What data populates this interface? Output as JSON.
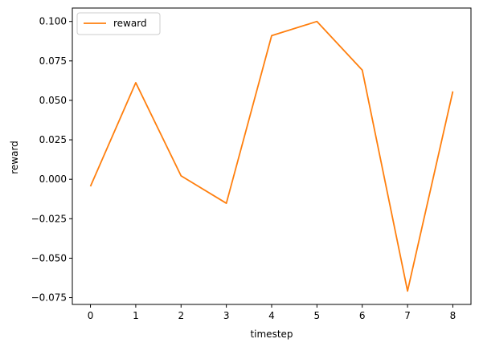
{
  "chart_data": {
    "type": "line",
    "x": [
      0,
      1,
      2,
      3,
      4,
      5,
      6,
      7,
      8
    ],
    "series": [
      {
        "name": "reward",
        "color": "#ff7f0e",
        "values": [
          -0.0045,
          0.0612,
          0.0022,
          -0.0152,
          0.091,
          0.1,
          0.0692,
          -0.0708,
          0.0557
        ]
      }
    ],
    "title": "",
    "xlabel": "timestep",
    "ylabel": "reward",
    "xlim": [
      -0.4,
      8.4
    ],
    "ylim": [
      -0.0793,
      0.1085
    ],
    "xticks": [
      0,
      1,
      2,
      3,
      4,
      5,
      6,
      7,
      8
    ],
    "xtick_labels": [
      "0",
      "1",
      "2",
      "3",
      "4",
      "5",
      "6",
      "7",
      "8"
    ],
    "yticks": [
      -0.075,
      -0.05,
      -0.025,
      0.0,
      0.025,
      0.05,
      0.075,
      0.1
    ],
    "ytick_labels": [
      "−0.075",
      "−0.050",
      "−0.025",
      "0.000",
      "0.025",
      "0.050",
      "0.075",
      "0.100"
    ],
    "grid": false,
    "legend_position": "top-left"
  }
}
